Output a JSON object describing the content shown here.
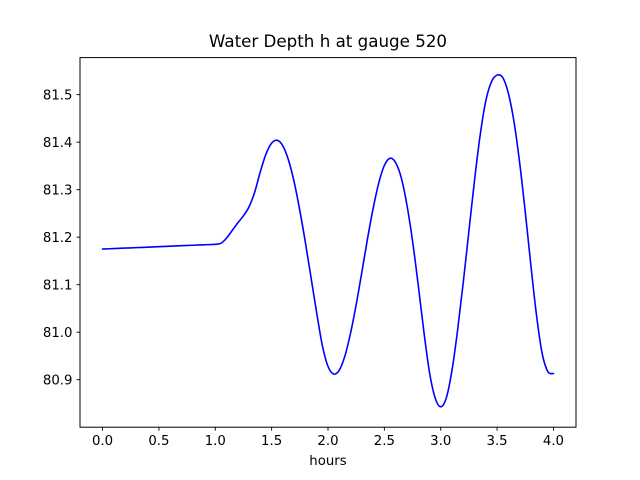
{
  "figure": {
    "background": "#ffffff",
    "frame_color": "#000000"
  },
  "chart_data": {
    "type": "line",
    "title": "Water Depth h at gauge 520",
    "xlabel": "hours",
    "ylabel": "",
    "xlim": [
      -0.2,
      4.2
    ],
    "ylim": [
      80.8,
      81.578
    ],
    "xticks": [
      0.0,
      0.5,
      1.0,
      1.5,
      2.0,
      2.5,
      3.0,
      3.5,
      4.0
    ],
    "yticks": [
      80.9,
      81.0,
      81.1,
      81.2,
      81.3,
      81.4,
      81.5
    ],
    "grid": false,
    "legend": false,
    "series": [
      {
        "name": "water-depth-h",
        "color": "#0000ff",
        "x": [
          0.0,
          0.1,
          0.2,
          0.3,
          0.4,
          0.5,
          0.6,
          0.7,
          0.8,
          0.9,
          1.0,
          1.05,
          1.1,
          1.15,
          1.2,
          1.25,
          1.3,
          1.35,
          1.4,
          1.45,
          1.5,
          1.55,
          1.6,
          1.65,
          1.7,
          1.75,
          1.8,
          1.85,
          1.9,
          1.95,
          2.0,
          2.05,
          2.1,
          2.15,
          2.2,
          2.25,
          2.3,
          2.35,
          2.4,
          2.45,
          2.5,
          2.55,
          2.6,
          2.65,
          2.7,
          2.75,
          2.8,
          2.85,
          2.9,
          2.95,
          3.0,
          3.05,
          3.1,
          3.15,
          3.2,
          3.25,
          3.3,
          3.35,
          3.4,
          3.45,
          3.5,
          3.55,
          3.6,
          3.65,
          3.7,
          3.75,
          3.8,
          3.85,
          3.9,
          3.95,
          4.0
        ],
        "y": [
          81.175,
          81.176,
          81.177,
          81.178,
          81.179,
          81.18,
          81.181,
          81.182,
          81.183,
          81.184,
          81.185,
          81.187,
          81.198,
          81.214,
          81.23,
          81.245,
          81.264,
          81.295,
          81.338,
          81.375,
          81.398,
          81.404,
          81.392,
          81.362,
          81.316,
          81.256,
          81.188,
          81.114,
          81.04,
          80.972,
          80.928,
          80.912,
          80.92,
          80.95,
          80.998,
          81.058,
          81.126,
          81.196,
          81.26,
          81.314,
          81.351,
          81.366,
          81.357,
          81.325,
          81.268,
          81.192,
          81.1,
          81.002,
          80.916,
          80.862,
          80.843,
          80.862,
          80.92,
          81.005,
          81.105,
          81.213,
          81.32,
          81.415,
          81.487,
          81.527,
          81.541,
          81.536,
          81.503,
          81.443,
          81.357,
          81.253,
          81.14,
          81.035,
          80.955,
          80.917,
          80.913
        ]
      }
    ]
  }
}
